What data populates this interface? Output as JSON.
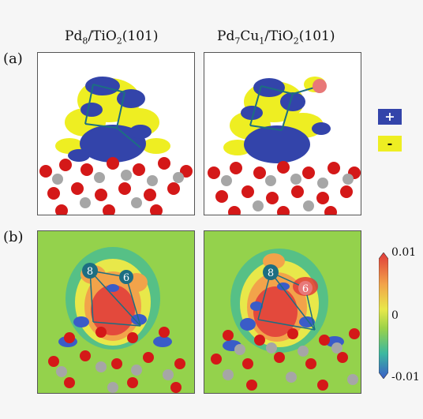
{
  "titles": {
    "left": {
      "a": "Pd",
      "a_sub": "8",
      "b": "/TiO",
      "b_sub": "2",
      "c": "(101)"
    },
    "right": {
      "a": "Pd",
      "a_sub": "7",
      "b": "Cu",
      "b_sub": "1",
      "c": "/TiO",
      "c_sub": "2",
      "d": "(101)"
    }
  },
  "panel_labels": {
    "a": "(a)",
    "b": "(b)"
  },
  "legend": {
    "plus": "+",
    "minus": "-",
    "plus_color": "#3344aa",
    "minus_color": "#eeee22"
  },
  "colorbar": {
    "max_label": "0.01",
    "mid_label": "0",
    "min_label": "-0.01",
    "colors": [
      "#e03a3a",
      "#f2a34a",
      "#e8e84a",
      "#9ad24a",
      "#3cb8a0",
      "#3a5cc8"
    ]
  },
  "atom_labels": {
    "left_a": "8",
    "left_b": "6",
    "right_a": "8",
    "right_b": "6"
  },
  "colors": {
    "oxygen": "#d41818",
    "titanium": "#a6a6a6",
    "pd": "#1c6e82",
    "cu": "#e87878",
    "isosurface_pos": "#3344aa",
    "isosurface_neg": "#eeee22",
    "map_bg": "#94d24c"
  }
}
